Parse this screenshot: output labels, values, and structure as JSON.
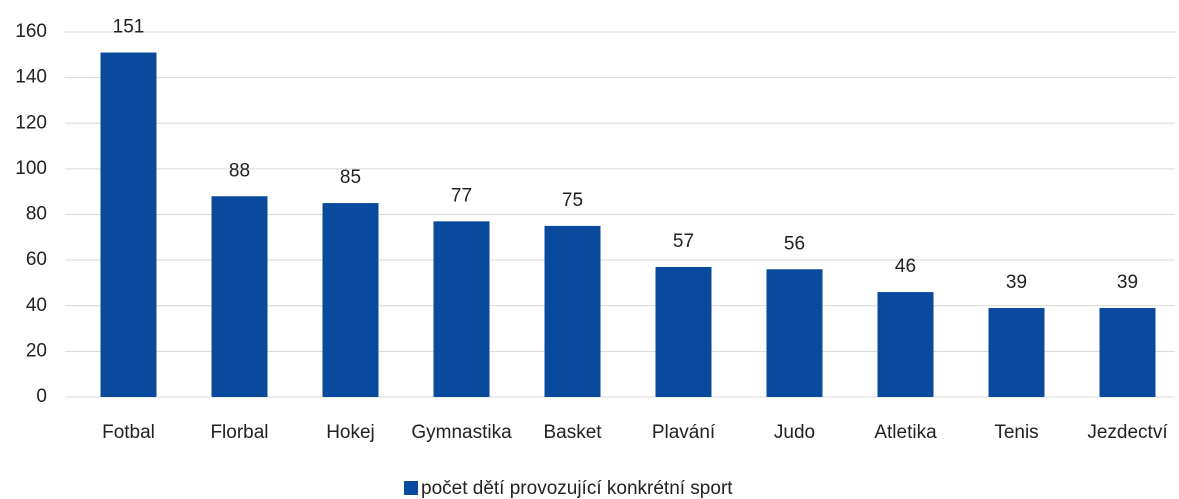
{
  "chart_data": {
    "type": "bar",
    "categories": [
      "Fotbal",
      "Florbal",
      "Hokej",
      "Gymnastika",
      "Basket",
      "Plavání",
      "Judo",
      "Atletika",
      "Tenis",
      "Jezdectví"
    ],
    "series": [
      {
        "name": "počet dětí provozující konkrétní sport",
        "color": "#0a4a9c",
        "values": [
          151,
          88,
          85,
          77,
          75,
          57,
          56,
          46,
          39,
          39
        ]
      }
    ],
    "ylim": [
      0,
      160
    ],
    "yticks": [
      0,
      20,
      40,
      60,
      80,
      100,
      120,
      140,
      160
    ],
    "grid": true,
    "legend": "bottom"
  }
}
